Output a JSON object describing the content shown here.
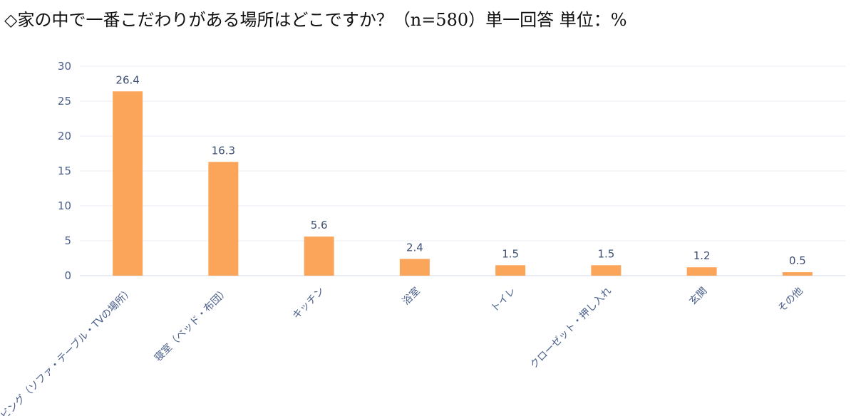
{
  "title": "◇家の中で一番こだわりがある場所はどこですか？（n=580）単一回答 単位：%",
  "chart_data": {
    "type": "bar",
    "categories": [
      "リビング（ソファ・テーブル・TVの場所）",
      "寝室（ベッド・布団）",
      "キッチン",
      "浴室",
      "トイレ",
      "クローゼット・押し入れ",
      "玄関",
      "その他"
    ],
    "values": [
      26.4,
      16.3,
      5.6,
      2.4,
      1.5,
      1.5,
      1.2,
      0.5
    ],
    "value_labels": [
      "26.4",
      "16.3",
      "5.6",
      "2.4",
      "1.5",
      "1.5",
      "1.2",
      "0.5"
    ],
    "yticks": [
      "0",
      "5",
      "10",
      "15",
      "20",
      "25",
      "30"
    ],
    "ylim": [
      0,
      30
    ],
    "grid": true,
    "bar_color": "#fba55a"
  }
}
